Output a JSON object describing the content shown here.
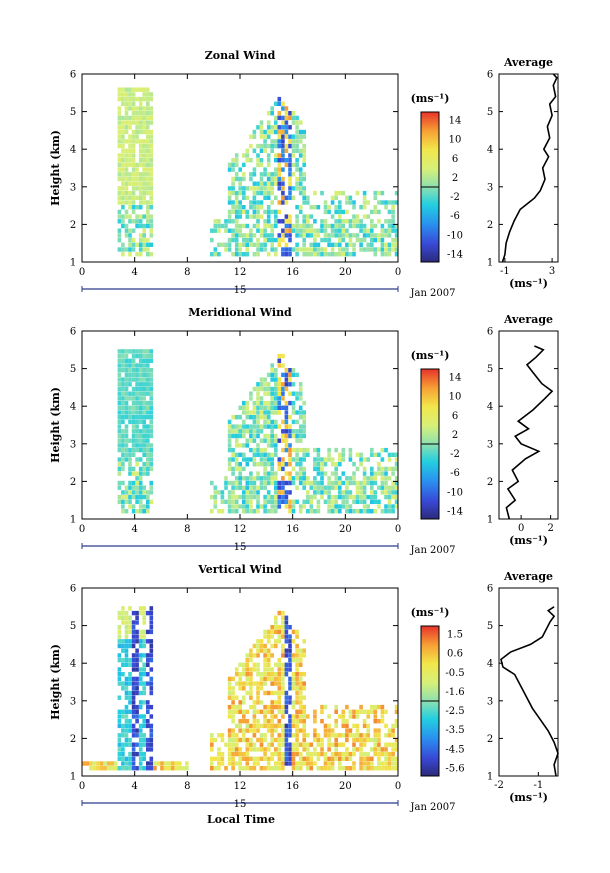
{
  "figure": {
    "bottom_label": "Local Time"
  },
  "chart_data": [
    {
      "type": "heatmap",
      "title": "Zonal Wind",
      "ylabel": "Height (km)",
      "xlabel": "",
      "x_ticks": [
        "0",
        "4",
        "8",
        "12",
        "16",
        "20",
        "0"
      ],
      "ylim": [
        1,
        6
      ],
      "y_ticks": [
        "1",
        "2",
        "3",
        "4",
        "5",
        "6"
      ],
      "date_center": "15",
      "date_right": "Jan 2007",
      "colorbar": {
        "unit_label": "(ms⁻¹)",
        "min": -15,
        "max": 15,
        "ticks": [
          "14",
          "10",
          "6",
          "2",
          "-2",
          "-6",
          "-10",
          "-14"
        ]
      },
      "profile": {
        "title": "Average",
        "xlim": [
          -1.5,
          3.5
        ],
        "x_ticks": [
          "-1",
          "3"
        ],
        "xlabel": "(ms⁻¹)",
        "points": [
          [
            -1.2,
            1.0
          ],
          [
            -1.0,
            1.2
          ],
          [
            -0.9,
            1.5
          ],
          [
            -0.6,
            1.8
          ],
          [
            -0.2,
            2.1
          ],
          [
            0.3,
            2.4
          ],
          [
            0.9,
            2.55
          ],
          [
            1.5,
            2.7
          ],
          [
            2.0,
            2.9
          ],
          [
            2.4,
            3.2
          ],
          [
            2.2,
            3.5
          ],
          [
            2.7,
            3.8
          ],
          [
            2.3,
            4.0
          ],
          [
            2.8,
            4.3
          ],
          [
            2.6,
            4.6
          ],
          [
            3.0,
            4.9
          ],
          [
            2.8,
            5.2
          ],
          [
            3.3,
            5.4
          ],
          [
            3.1,
            5.7
          ],
          [
            3.4,
            5.9
          ],
          [
            3.1,
            6.0
          ]
        ]
      }
    },
    {
      "type": "heatmap",
      "title": "Meridional Wind",
      "ylabel": "Height (km)",
      "xlabel": "",
      "x_ticks": [
        "0",
        "4",
        "8",
        "12",
        "16",
        "20",
        "0"
      ],
      "ylim": [
        1,
        6
      ],
      "y_ticks": [
        "1",
        "2",
        "3",
        "4",
        "5",
        "6"
      ],
      "date_center": "15",
      "date_right": "Jan 2007",
      "colorbar": {
        "unit_label": "(ms⁻¹)",
        "min": -15,
        "max": 15,
        "ticks": [
          "14",
          "10",
          "6",
          "2",
          "-2",
          "-6",
          "-10",
          "-14"
        ]
      },
      "profile": {
        "title": "Average",
        "xlim": [
          -1.5,
          2.5
        ],
        "x_ticks": [
          "0",
          "2"
        ],
        "xlabel": "(ms⁻¹)",
        "points": [
          [
            -0.8,
            1.0
          ],
          [
            -1.0,
            1.3
          ],
          [
            -0.4,
            1.5
          ],
          [
            -0.9,
            1.8
          ],
          [
            -0.2,
            2.0
          ],
          [
            -0.6,
            2.3
          ],
          [
            0.3,
            2.6
          ],
          [
            1.2,
            2.8
          ],
          [
            0.0,
            3.0
          ],
          [
            -0.4,
            3.2
          ],
          [
            0.5,
            3.4
          ],
          [
            -0.2,
            3.6
          ],
          [
            0.8,
            3.9
          ],
          [
            1.6,
            4.2
          ],
          [
            2.1,
            4.4
          ],
          [
            1.4,
            4.6
          ],
          [
            0.8,
            4.9
          ],
          [
            0.4,
            5.1
          ],
          [
            1.0,
            5.3
          ],
          [
            1.5,
            5.5
          ],
          [
            0.9,
            5.6
          ]
        ]
      }
    },
    {
      "type": "heatmap",
      "title": "Vertical Wind",
      "ylabel": "Height (km)",
      "xlabel": "Local Time",
      "x_ticks": [
        "0",
        "4",
        "8",
        "12",
        "16",
        "20",
        "0"
      ],
      "ylim": [
        1,
        6
      ],
      "y_ticks": [
        "1",
        "2",
        "3",
        "4",
        "5",
        "6"
      ],
      "date_center": "15",
      "date_right": "Jan 2007",
      "colorbar": {
        "unit_label": "(ms⁻¹)",
        "min": -6.0,
        "max": 2.0,
        "ticks": [
          "1.5",
          "0.6",
          "-0.5",
          "-1.6",
          "-2.5",
          "-3.5",
          "-4.5",
          "-5.6"
        ]
      },
      "profile": {
        "title": "Average",
        "xlim": [
          -2,
          -0.5
        ],
        "x_ticks": [
          "-2",
          "-1"
        ],
        "xlabel": "(ms⁻¹)",
        "points": [
          [
            -0.55,
            1.0
          ],
          [
            -0.6,
            1.3
          ],
          [
            -0.5,
            1.6
          ],
          [
            -0.6,
            1.9
          ],
          [
            -0.75,
            2.2
          ],
          [
            -0.95,
            2.5
          ],
          [
            -1.15,
            2.8
          ],
          [
            -1.3,
            3.1
          ],
          [
            -1.45,
            3.4
          ],
          [
            -1.6,
            3.7
          ],
          [
            -1.9,
            3.9
          ],
          [
            -1.95,
            4.1
          ],
          [
            -1.7,
            4.3
          ],
          [
            -1.2,
            4.5
          ],
          [
            -0.9,
            4.7
          ],
          [
            -0.8,
            4.9
          ],
          [
            -0.7,
            5.1
          ],
          [
            -0.6,
            5.25
          ],
          [
            -0.75,
            5.4
          ],
          [
            -0.6,
            5.5
          ]
        ]
      }
    }
  ]
}
